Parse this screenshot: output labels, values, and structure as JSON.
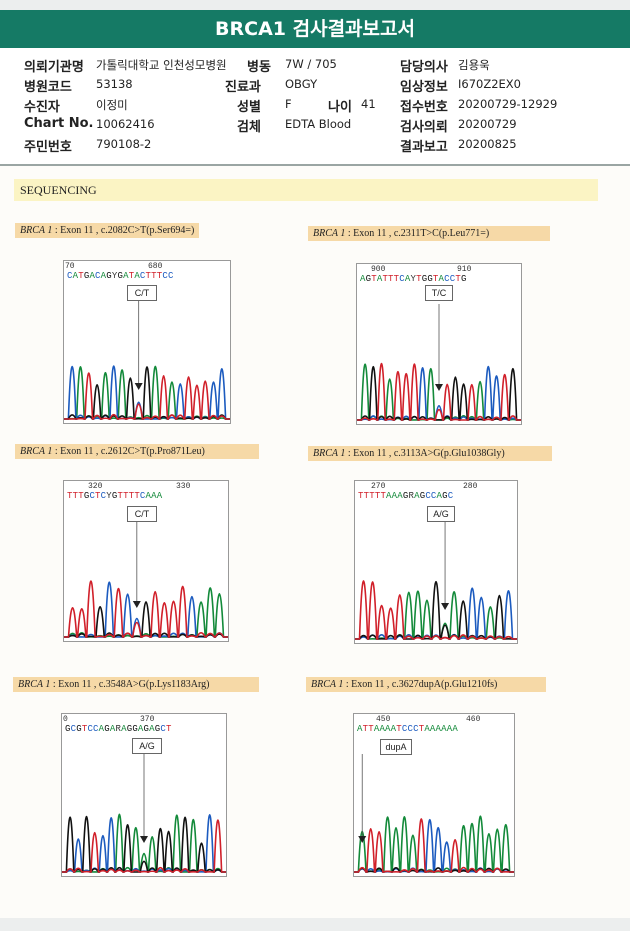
{
  "report": {
    "title": "BRCA1 검사결과보고서",
    "fields": [
      {
        "label": "의뢰기관명",
        "value": "가톨릭대학교 인천성모병원"
      },
      {
        "label": "병동",
        "value": "7W / 705"
      },
      {
        "label": "담당의사",
        "value": "김용욱"
      },
      {
        "label": "병원코드",
        "value": "53138"
      },
      {
        "label": "진료과",
        "value": "OBGY"
      },
      {
        "label": "임상정보",
        "value": "I670Z2EX0"
      },
      {
        "label": "수진자",
        "value": "이정미"
      },
      {
        "label": "성별",
        "value": "F"
      },
      {
        "label": "나이",
        "value": "41"
      },
      {
        "label": "접수번호",
        "value": "20200729-12929"
      },
      {
        "label": "Chart No.",
        "value": "10062416"
      },
      {
        "label": "검체",
        "value": "EDTA Blood"
      },
      {
        "label": "검사의뢰",
        "value": "20200729"
      },
      {
        "label": "주민번호",
        "value": "790108-2"
      },
      {
        "label": "결과보고",
        "value": "20200825"
      }
    ]
  },
  "section": {
    "title": "SEQUENCING"
  },
  "panels": [
    {
      "gene": "BRCA 1",
      "desc": " : Exon 11 , c.2082C>T(p.Ser694=)",
      "pos_left": "70",
      "pos_right": "680",
      "bases": "CATGACAGYGATACTTTCC",
      "call": "C/T"
    },
    {
      "gene": "BRCA 1",
      "desc": " : Exon 11 , c.2311T>C(p.Leu771=)",
      "pos_left": "900",
      "pos_right": "910",
      "bases": "AGTATTTCAYTGGTACCTG",
      "call": "T/C"
    },
    {
      "gene": "BRCA 1",
      "desc": " : Exon 11 , c.2612C>T(p.Pro871Leu)",
      "pos_left": "320",
      "pos_right": "330",
      "bases": "TTTGCTCYGTTTTCAAA",
      "call": "C/T"
    },
    {
      "gene": "BRCA 1",
      "desc": " : Exon 11 , c.3113A>G(p.Glu1038Gly)",
      "pos_left": "270",
      "pos_right": "280",
      "bases": "TTTTTAAAGRAGCCAGC",
      "call": "A/G"
    },
    {
      "gene": "BRCA 1",
      "desc": " : Exon 11 , c.3548A>G(p.Lys1183Arg)",
      "pos_left": "0",
      "pos_right": "370",
      "bases": "GCGTCCAGARAGGAGAGCT",
      "call": "A/G"
    },
    {
      "gene": "BRCA 1",
      "desc": " : Exon 11 , c.3627dupA(p.Glu1210fs)",
      "pos_left": "450",
      "pos_right": "460",
      "bases": "ATTAAAATCCCTAAAAAA",
      "call": "dupA"
    }
  ],
  "colors": {
    "title_bg": "#157a65",
    "A": "#138a3a",
    "C": "#1c5bbf",
    "G": "#111111",
    "T": "#d1202a",
    "label_bg": "#f6d9a7",
    "section_bg": "#fbf4c4"
  }
}
